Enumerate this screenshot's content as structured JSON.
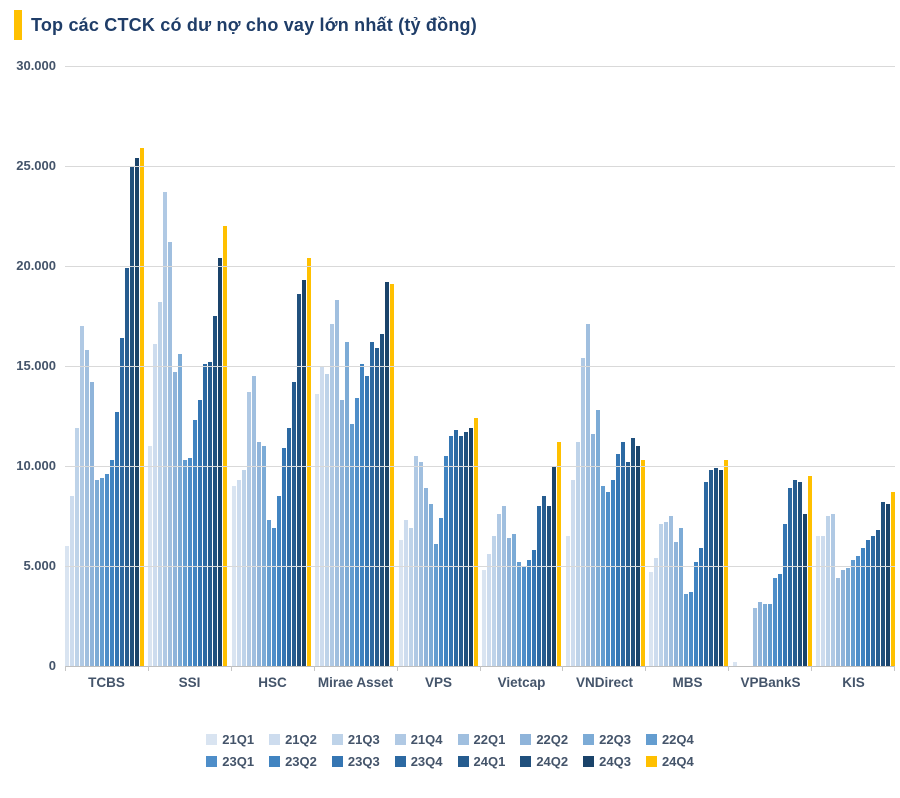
{
  "title": {
    "text": "Top các CTCK có dư nợ cho vay lớn nhất (tỷ đồng)",
    "accent_color": "#FFC000",
    "text_color": "#1F3D68"
  },
  "colors": {
    "grid": "#d9d9d9",
    "axis_text": "#44546A",
    "highlight_series": "#FFC000"
  },
  "chart_data": {
    "type": "bar",
    "title": "Top các CTCK có dư nợ cho vay lớn nhất (tỷ đồng)",
    "xlabel": "",
    "ylabel": "",
    "ylim": [
      0,
      30000
    ],
    "ytick_step": 5000,
    "ytick_labels": [
      "30.000",
      "25.000",
      "20.000",
      "15.000",
      "10.000",
      "5.000",
      "0"
    ],
    "grid": true,
    "legend_position": "bottom",
    "categories": [
      "TCBS",
      "SSI",
      "HSC",
      "Mirae Asset",
      "VPS",
      "Vietcap",
      "VNDirect",
      "MBS",
      "VPBankS",
      "KIS"
    ],
    "series": [
      {
        "name": "21Q1",
        "color": "#d9e4f1",
        "values": [
          6000,
          11000,
          9000,
          13600,
          6300,
          4800,
          6500,
          4700,
          200,
          6500
        ]
      },
      {
        "name": "21Q2",
        "color": "#cddcee",
        "values": [
          8500,
          16100,
          9300,
          15000,
          7300,
          5600,
          9300,
          5400,
          0,
          6500
        ]
      },
      {
        "name": "21Q3",
        "color": "#bed3e9",
        "values": [
          11900,
          18200,
          9800,
          14600,
          6900,
          6500,
          11200,
          7100,
          0,
          7500
        ]
      },
      {
        "name": "21Q4",
        "color": "#b0c9e4",
        "values": [
          17000,
          23700,
          13700,
          17100,
          10500,
          7600,
          15400,
          7200,
          0,
          7600
        ]
      },
      {
        "name": "22Q1",
        "color": "#a0bfdf",
        "values": [
          15800,
          21200,
          14500,
          18300,
          10200,
          8000,
          17100,
          7500,
          2900,
          4400
        ]
      },
      {
        "name": "22Q2",
        "color": "#8fb4da",
        "values": [
          14200,
          14700,
          11200,
          13300,
          8900,
          6400,
          11600,
          6200,
          3200,
          4800
        ]
      },
      {
        "name": "22Q3",
        "color": "#7cabd6",
        "values": [
          9300,
          15600,
          11000,
          16200,
          8100,
          6600,
          12800,
          6900,
          3100,
          4900
        ]
      },
      {
        "name": "22Q4",
        "color": "#649dd0",
        "values": [
          9400,
          10300,
          7300,
          12100,
          6100,
          5200,
          9000,
          3600,
          3100,
          5300
        ]
      },
      {
        "name": "23Q1",
        "color": "#4e8ec9",
        "values": [
          9600,
          10400,
          6900,
          13400,
          7400,
          5000,
          8700,
          3700,
          4400,
          5500
        ]
      },
      {
        "name": "23Q2",
        "color": "#4184c1",
        "values": [
          10300,
          12300,
          8500,
          15100,
          10500,
          5300,
          9300,
          5200,
          4600,
          5900
        ]
      },
      {
        "name": "23Q3",
        "color": "#3576b3",
        "values": [
          12700,
          13300,
          10900,
          14500,
          11500,
          5800,
          10600,
          5900,
          7100,
          6300
        ]
      },
      {
        "name": "23Q4",
        "color": "#2c69a2",
        "values": [
          16400,
          15100,
          11900,
          16200,
          11800,
          8000,
          11200,
          9200,
          8900,
          6500
        ]
      },
      {
        "name": "24Q1",
        "color": "#265c8f",
        "values": [
          19900,
          15200,
          14200,
          15900,
          11500,
          8500,
          10200,
          9800,
          9300,
          6800
        ]
      },
      {
        "name": "24Q2",
        "color": "#20507d",
        "values": [
          25000,
          17500,
          18600,
          16600,
          11700,
          8000,
          11400,
          9900,
          9200,
          8200
        ]
      },
      {
        "name": "24Q3",
        "color": "#1a436a",
        "values": [
          25400,
          20400,
          19300,
          19200,
          11900,
          10000,
          11000,
          9800,
          7600,
          8100
        ]
      },
      {
        "name": "24Q4",
        "color": "#FFC000",
        "values": [
          25900,
          22000,
          20400,
          19100,
          12400,
          11200,
          10300,
          10300,
          9500,
          8700
        ]
      }
    ]
  }
}
